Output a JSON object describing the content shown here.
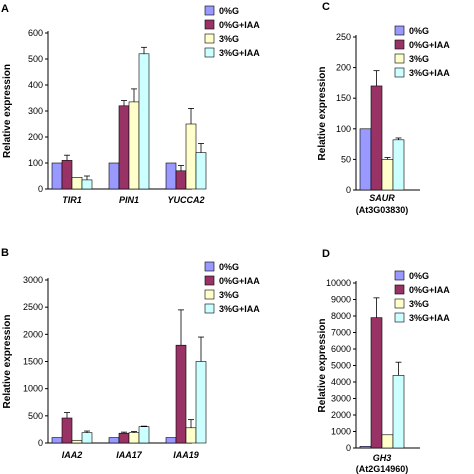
{
  "series_colors": [
    "#9999ff",
    "#993366",
    "#ffffcc",
    "#ccffff"
  ],
  "chart_data": [
    {
      "panel": "A",
      "type": "bar",
      "ylabel": "Relative expression",
      "ylim": [
        0,
        600
      ],
      "yticks": [
        0,
        100,
        200,
        300,
        400,
        500,
        600
      ],
      "categories": [
        "TIR1",
        "PIN1",
        "YUCCA2"
      ],
      "legend": "right",
      "series": [
        {
          "name": "0%G",
          "values": [
            100,
            100,
            100
          ],
          "errors": [
            0,
            0,
            0
          ]
        },
        {
          "name": "0%G+IAA",
          "values": [
            110,
            320,
            70
          ],
          "errors": [
            20,
            20,
            20
          ]
        },
        {
          "name": "3%G",
          "values": [
            45,
            335,
            250
          ],
          "errors": [
            0,
            50,
            60
          ]
        },
        {
          "name": "3%G+IAA",
          "values": [
            35,
            520,
            140
          ],
          "errors": [
            15,
            25,
            35
          ]
        }
      ]
    },
    {
      "panel": "B",
      "type": "bar",
      "ylabel": "Relative expression",
      "ylim": [
        0,
        3000
      ],
      "yticks": [
        0,
        500,
        1000,
        1500,
        2000,
        2500,
        3000
      ],
      "categories": [
        "IAA2",
        "IAA17",
        "IAA19"
      ],
      "legend": "right",
      "series": [
        {
          "name": "0%G",
          "values": [
            100,
            100,
            100
          ],
          "errors": [
            0,
            0,
            0
          ]
        },
        {
          "name": "0%G+IAA",
          "values": [
            460,
            180,
            1800
          ],
          "errors": [
            100,
            20,
            650
          ]
        },
        {
          "name": "3%G",
          "values": [
            50,
            190,
            280
          ],
          "errors": [
            0,
            20,
            150
          ]
        },
        {
          "name": "3%G+IAA",
          "values": [
            190,
            300,
            1500
          ],
          "errors": [
            30,
            10,
            450
          ]
        }
      ]
    },
    {
      "panel": "C",
      "type": "bar",
      "ylabel": "Relative expression",
      "ylim": [
        0,
        250
      ],
      "yticks": [
        0,
        50,
        100,
        150,
        200,
        250
      ],
      "categories": [
        "SAUR"
      ],
      "category_subtitles": [
        "(At3G03830)"
      ],
      "legend": "right",
      "series": [
        {
          "name": "0%G",
          "values": [
            100
          ],
          "errors": [
            0
          ]
        },
        {
          "name": "0%G+IAA",
          "values": [
            170
          ],
          "errors": [
            25
          ]
        },
        {
          "name": "3%G",
          "values": [
            50
          ],
          "errors": [
            3
          ]
        },
        {
          "name": "3%G+IAA",
          "values": [
            82
          ],
          "errors": [
            3
          ]
        }
      ]
    },
    {
      "panel": "D",
      "type": "bar",
      "ylabel": "Relative expression",
      "ylim": [
        0,
        10000
      ],
      "yticks": [
        0,
        1000,
        2000,
        3000,
        4000,
        5000,
        6000,
        7000,
        8000,
        9000,
        10000
      ],
      "categories": [
        "GH3"
      ],
      "category_subtitles": [
        "(At2G14960)"
      ],
      "legend": "right",
      "series": [
        {
          "name": "0%G",
          "values": [
            100
          ],
          "errors": [
            0
          ]
        },
        {
          "name": "0%G+IAA",
          "values": [
            7900
          ],
          "errors": [
            1200
          ]
        },
        {
          "name": "3%G",
          "values": [
            800
          ],
          "errors": [
            0
          ]
        },
        {
          "name": "3%G+IAA",
          "values": [
            4400
          ],
          "errors": [
            800
          ]
        }
      ]
    }
  ]
}
